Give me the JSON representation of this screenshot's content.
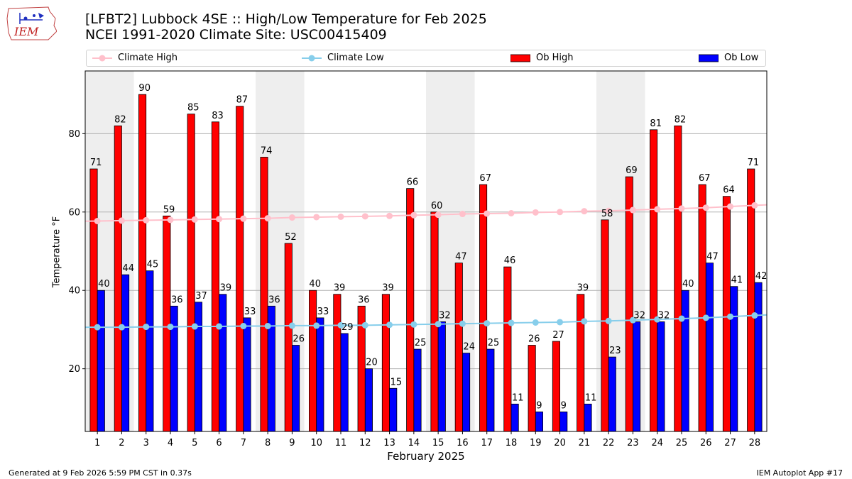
{
  "header": {
    "title_line1": "[LFBT2] Lubbock 4SE :: High/Low Temperature for Feb 2025",
    "title_line2": "NCEI 1991-2020 Climate Site: USC00415409",
    "logo_text": "IEM"
  },
  "footer": {
    "generated": "Generated at 9 Feb 2026 5:59 PM CST in 0.37s",
    "app": "IEM Autoplot App #17"
  },
  "colors": {
    "ob_high": "#ff0000",
    "ob_low": "#0000ff",
    "climate_high": "#ffc0cb",
    "climate_low": "#87ceeb",
    "weekend_band": "#eeeeee"
  },
  "chart_data": {
    "type": "bar",
    "xlabel": "February 2025",
    "ylabel": "Temperature °F",
    "ylim": [
      4,
      96
    ],
    "yticks": [
      20,
      40,
      60,
      80
    ],
    "grid": "horizontal",
    "legend_position": "top",
    "categories": [
      "1",
      "2",
      "3",
      "4",
      "5",
      "6",
      "7",
      "8",
      "9",
      "10",
      "11",
      "12",
      "13",
      "14",
      "15",
      "16",
      "17",
      "18",
      "19",
      "20",
      "21",
      "22",
      "23",
      "24",
      "25",
      "26",
      "27",
      "28"
    ],
    "shaded_days": [
      [
        1,
        2
      ],
      [
        8,
        9
      ],
      [
        15,
        16
      ],
      [
        22,
        23
      ]
    ],
    "series": [
      {
        "name": "Climate High",
        "kind": "line",
        "values": [
          57.7,
          57.8,
          57.9,
          58.0,
          58.1,
          58.2,
          58.3,
          58.4,
          58.6,
          58.7,
          58.8,
          58.9,
          59.0,
          59.2,
          59.3,
          59.5,
          59.6,
          59.7,
          59.9,
          60.0,
          60.2,
          60.3,
          60.5,
          60.7,
          60.9,
          61.1,
          61.4,
          61.7
        ]
      },
      {
        "name": "Climate Low",
        "kind": "line",
        "values": [
          30.6,
          30.6,
          30.7,
          30.7,
          30.8,
          30.8,
          30.9,
          30.9,
          31.0,
          31.0,
          31.1,
          31.1,
          31.2,
          31.3,
          31.4,
          31.5,
          31.6,
          31.7,
          31.8,
          31.9,
          32.1,
          32.2,
          32.4,
          32.6,
          32.8,
          33.0,
          33.3,
          33.6
        ]
      },
      {
        "name": "Ob High",
        "kind": "bar",
        "values": [
          71,
          82,
          90,
          59,
          85,
          83,
          87,
          74,
          52,
          40,
          39,
          36,
          39,
          66,
          60,
          47,
          67,
          46,
          26,
          27,
          39,
          58,
          69,
          81,
          82,
          67,
          64,
          71
        ]
      },
      {
        "name": "Ob Low",
        "kind": "bar",
        "values": [
          40,
          44,
          45,
          36,
          37,
          39,
          33,
          36,
          26,
          33,
          29,
          20,
          15,
          25,
          32,
          24,
          25,
          11,
          9,
          9,
          11,
          23,
          32,
          32,
          40,
          47,
          41,
          42
        ]
      }
    ]
  }
}
